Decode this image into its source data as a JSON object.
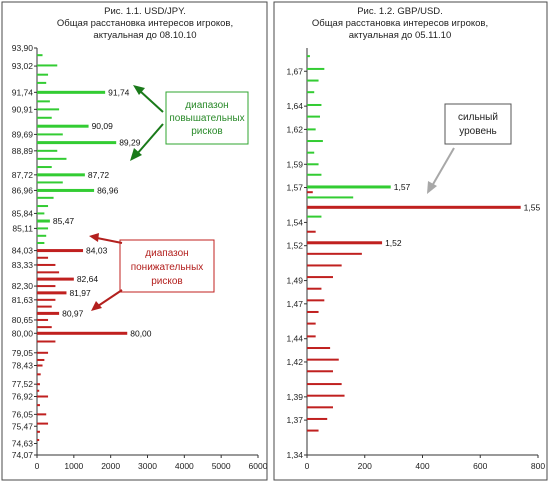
{
  "chart_data": [
    {
      "type": "bar",
      "orientation": "horizontal",
      "title_lines": [
        "Рис. 1.1. USD/JPY.",
        "Общая расстановка интересов игроков,",
        "актуальная до 08.10.10"
      ],
      "xlim": [
        0,
        6000
      ],
      "x_ticks": [
        "0",
        "1000",
        "2000",
        "3000",
        "4000",
        "5000",
        "6000"
      ],
      "ylim": [
        74.07,
        93.9
      ],
      "y_ticks": [
        "93,90",
        "93,02",
        "91,74",
        "90,91",
        "89,69",
        "88,89",
        "87,72",
        "86,96",
        "85,84",
        "85,11",
        "84,03",
        "83,33",
        "82,30",
        "81,63",
        "80,65",
        "80,00",
        "79,05",
        "78,43",
        "77,52",
        "76,92",
        "76,05",
        "75,47",
        "74,63",
        "74,07"
      ],
      "grid": false,
      "colors": {
        "upper": "#33cc33",
        "lower": "#c0201f",
        "arrow_up": "#1a7a1a",
        "arrow_down": "#b3201e",
        "label_box_up": "#2fa52f",
        "label_box_down": "#c0201f",
        "text_up": "#2a8a2a",
        "text_down": "#b3201e"
      },
      "series_upper": [
        {
          "y": 93.55,
          "value": 150
        },
        {
          "y": 93.05,
          "value": 550
        },
        {
          "y": 92.6,
          "value": 300
        },
        {
          "y": 92.2,
          "value": 250
        },
        {
          "y": 91.74,
          "value": 1850,
          "label": "91,74"
        },
        {
          "y": 91.3,
          "value": 350
        },
        {
          "y": 90.91,
          "value": 600
        },
        {
          "y": 90.5,
          "value": 400
        },
        {
          "y": 90.09,
          "value": 1400,
          "label": "90,09"
        },
        {
          "y": 89.69,
          "value": 700
        },
        {
          "y": 89.29,
          "value": 2150,
          "label": "89,29"
        },
        {
          "y": 88.89,
          "value": 550
        },
        {
          "y": 88.5,
          "value": 800
        },
        {
          "y": 88.1,
          "value": 400
        },
        {
          "y": 87.72,
          "value": 1300,
          "label": "87,72"
        },
        {
          "y": 87.35,
          "value": 700
        },
        {
          "y": 86.96,
          "value": 1550,
          "label": "86,96"
        },
        {
          "y": 86.6,
          "value": 450
        },
        {
          "y": 86.2,
          "value": 300
        },
        {
          "y": 85.84,
          "value": 200
        },
        {
          "y": 85.47,
          "value": 350,
          "label": "85,47"
        },
        {
          "y": 85.11,
          "value": 300
        },
        {
          "y": 84.75,
          "value": 250
        },
        {
          "y": 84.4,
          "value": 200
        }
      ],
      "series_lower": [
        {
          "y": 84.03,
          "value": 1250,
          "label": "84,03"
        },
        {
          "y": 83.68,
          "value": 300
        },
        {
          "y": 83.33,
          "value": 500
        },
        {
          "y": 82.97,
          "value": 600
        },
        {
          "y": 82.64,
          "value": 1000,
          "label": "82,64"
        },
        {
          "y": 82.3,
          "value": 500
        },
        {
          "y": 81.97,
          "value": 800,
          "label": "81,97"
        },
        {
          "y": 81.63,
          "value": 500
        },
        {
          "y": 81.3,
          "value": 400
        },
        {
          "y": 80.97,
          "value": 600,
          "label": "80,97"
        },
        {
          "y": 80.65,
          "value": 300
        },
        {
          "y": 80.3,
          "value": 400
        },
        {
          "y": 80.0,
          "value": 2450,
          "label": "80,00"
        },
        {
          "y": 79.6,
          "value": 500
        },
        {
          "y": 79.05,
          "value": 300
        },
        {
          "y": 78.7,
          "value": 200
        },
        {
          "y": 78.43,
          "value": 150
        },
        {
          "y": 78.0,
          "value": 100
        },
        {
          "y": 77.52,
          "value": 80
        },
        {
          "y": 77.2,
          "value": 60
        },
        {
          "y": 76.92,
          "value": 300
        },
        {
          "y": 76.5,
          "value": 80
        },
        {
          "y": 76.05,
          "value": 250
        },
        {
          "y": 75.6,
          "value": 300
        },
        {
          "y": 75.2,
          "value": 80
        },
        {
          "y": 74.8,
          "value": 60
        }
      ],
      "annotations": {
        "upper_label_lines": [
          "диапазон",
          "повышательных",
          "рисков"
        ],
        "lower_label_lines": [
          "диапазон",
          "понижательных",
          "рисков"
        ]
      }
    },
    {
      "type": "bar",
      "orientation": "horizontal",
      "title_lines": [
        "Рис. 1.2. GBP/USD.",
        "Общая расстановка интересов игроков,",
        "актуальная до 05.11.10"
      ],
      "xlim": [
        0,
        800
      ],
      "x_ticks": [
        "0",
        "200",
        "400",
        "600",
        "800"
      ],
      "ylim": [
        1.34,
        1.69
      ],
      "y_ticks": [
        "1,67",
        "1,64",
        "1,62",
        "1,59",
        "1,57",
        "1,54",
        "1,52",
        "1,49",
        "1,47",
        "1,44",
        "1,42",
        "1,39",
        "1,37",
        "1,34"
      ],
      "grid": false,
      "colors": {
        "upper": "#33cc33",
        "lower": "#c0201f",
        "arrow": "#a8a8a8",
        "label_box": "#555555"
      },
      "series_upper": [
        {
          "y": 1.683,
          "value": 10
        },
        {
          "y": 1.672,
          "value": 60
        },
        {
          "y": 1.662,
          "value": 40
        },
        {
          "y": 1.652,
          "value": 25
        },
        {
          "y": 1.641,
          "value": 50
        },
        {
          "y": 1.631,
          "value": 45
        },
        {
          "y": 1.62,
          "value": 30
        },
        {
          "y": 1.61,
          "value": 55
        },
        {
          "y": 1.6,
          "value": 25
        },
        {
          "y": 1.59,
          "value": 40
        },
        {
          "y": 1.581,
          "value": 50
        },
        {
          "y": 1.5705,
          "value": 290,
          "label": "1,57"
        },
        {
          "y": 1.5615,
          "value": 160
        },
        {
          "y": 1.545,
          "value": 50
        }
      ],
      "series_lower": [
        {
          "y": 1.566,
          "value": 20
        },
        {
          "y": 1.553,
          "value": 740,
          "label": "1,55"
        },
        {
          "y": 1.532,
          "value": 30
        },
        {
          "y": 1.5225,
          "value": 260,
          "label": "1,52"
        },
        {
          "y": 1.513,
          "value": 190
        },
        {
          "y": 1.503,
          "value": 120
        },
        {
          "y": 1.493,
          "value": 90
        },
        {
          "y": 1.483,
          "value": 50
        },
        {
          "y": 1.473,
          "value": 60
        },
        {
          "y": 1.463,
          "value": 40
        },
        {
          "y": 1.453,
          "value": 30
        },
        {
          "y": 1.442,
          "value": 30
        },
        {
          "y": 1.432,
          "value": 80
        },
        {
          "y": 1.422,
          "value": 110
        },
        {
          "y": 1.412,
          "value": 90
        },
        {
          "y": 1.401,
          "value": 120
        },
        {
          "y": 1.391,
          "value": 130
        },
        {
          "y": 1.381,
          "value": 90
        },
        {
          "y": 1.371,
          "value": 70
        },
        {
          "y": 1.361,
          "value": 40
        }
      ],
      "annotations": {
        "label_lines": [
          "сильный",
          "уровень"
        ]
      }
    }
  ]
}
